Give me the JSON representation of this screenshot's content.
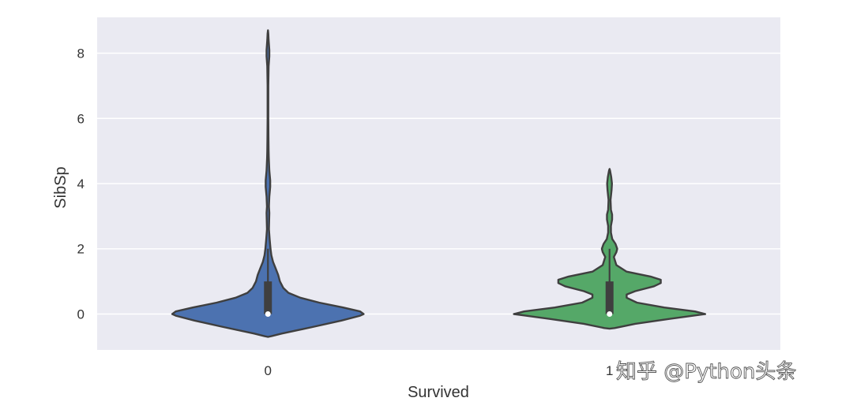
{
  "chart_data": {
    "type": "violin",
    "xlabel": "Survived",
    "ylabel": "SibSp",
    "categories": [
      "0",
      "1"
    ],
    "ylim": [
      -1.1,
      9.1
    ],
    "yticks": [
      0,
      2,
      4,
      6,
      8
    ],
    "grid": true,
    "series": [
      {
        "category": "0",
        "color": "#4c72b0",
        "max_half_width_data": 0.56,
        "quartiles": [
          0,
          0,
          1
        ],
        "median": 0,
        "whisker": [
          0,
          2
        ],
        "profile": [
          [
            -0.7,
            0.0
          ],
          [
            -0.68,
            0.02
          ],
          [
            -0.6,
            0.08
          ],
          [
            -0.4,
            0.26
          ],
          [
            -0.2,
            0.43
          ],
          [
            -0.05,
            0.54
          ],
          [
            0.0,
            0.56
          ],
          [
            0.08,
            0.54
          ],
          [
            0.2,
            0.44
          ],
          [
            0.35,
            0.3
          ],
          [
            0.5,
            0.19
          ],
          [
            0.65,
            0.12
          ],
          [
            0.8,
            0.09
          ],
          [
            1.0,
            0.07
          ],
          [
            1.2,
            0.06
          ],
          [
            1.4,
            0.045
          ],
          [
            1.6,
            0.03
          ],
          [
            1.8,
            0.02
          ],
          [
            2.0,
            0.015
          ],
          [
            2.3,
            0.01
          ],
          [
            2.6,
            0.006
          ],
          [
            2.9,
            0.007
          ],
          [
            3.1,
            0.008
          ],
          [
            3.3,
            0.006
          ],
          [
            3.6,
            0.008
          ],
          [
            3.9,
            0.013
          ],
          [
            4.1,
            0.013
          ],
          [
            4.4,
            0.008
          ],
          [
            4.8,
            0.005
          ],
          [
            5.0,
            0.004
          ],
          [
            5.4,
            0.003
          ],
          [
            6.0,
            0.002
          ],
          [
            7.0,
            0.002
          ],
          [
            7.6,
            0.004
          ],
          [
            7.9,
            0.008
          ],
          [
            8.1,
            0.008
          ],
          [
            8.4,
            0.004
          ],
          [
            8.6,
            0.002
          ],
          [
            8.7,
            0.0
          ]
        ]
      },
      {
        "category": "1",
        "color": "#55a868",
        "max_half_width_data": 0.56,
        "quartiles": [
          0,
          0,
          1
        ],
        "median": 0,
        "whisker": [
          0,
          2
        ],
        "profile": [
          [
            -0.45,
            0.0
          ],
          [
            -0.43,
            0.03
          ],
          [
            -0.3,
            0.15
          ],
          [
            -0.15,
            0.35
          ],
          [
            -0.05,
            0.49
          ],
          [
            0.0,
            0.56
          ],
          [
            0.08,
            0.5
          ],
          [
            0.2,
            0.32
          ],
          [
            0.35,
            0.16
          ],
          [
            0.5,
            0.1
          ],
          [
            0.6,
            0.1
          ],
          [
            0.7,
            0.15
          ],
          [
            0.85,
            0.26
          ],
          [
            0.95,
            0.3
          ],
          [
            1.05,
            0.3
          ],
          [
            1.15,
            0.24
          ],
          [
            1.3,
            0.1
          ],
          [
            1.5,
            0.04
          ],
          [
            1.75,
            0.025
          ],
          [
            1.9,
            0.04
          ],
          [
            2.0,
            0.045
          ],
          [
            2.15,
            0.035
          ],
          [
            2.3,
            0.016
          ],
          [
            2.5,
            0.008
          ],
          [
            2.7,
            0.008
          ],
          [
            2.9,
            0.015
          ],
          [
            3.05,
            0.015
          ],
          [
            3.2,
            0.008
          ],
          [
            3.5,
            0.006
          ],
          [
            3.8,
            0.012
          ],
          [
            4.0,
            0.014
          ],
          [
            4.2,
            0.01
          ],
          [
            4.4,
            0.003
          ],
          [
            4.45,
            0.0
          ]
        ]
      }
    ]
  },
  "watermark": "知乎 @Python头条"
}
